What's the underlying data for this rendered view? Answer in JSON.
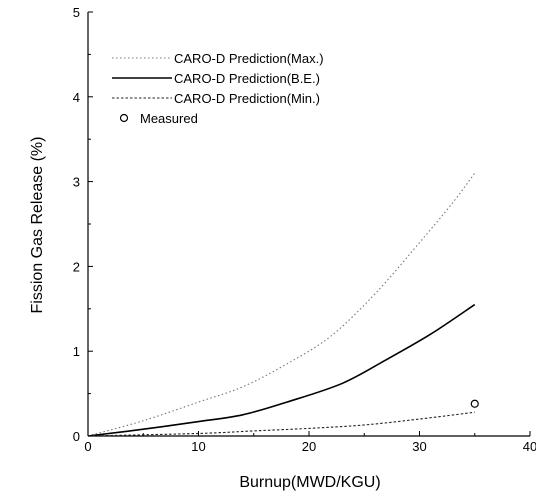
{
  "chart_data": {
    "type": "line",
    "xlabel": "Burnup(MWD/KGU)",
    "ylabel": "Fission Gas Release (%)",
    "xlim": [
      0,
      40
    ],
    "ylim": [
      0,
      5
    ],
    "xticks": [
      0,
      10,
      20,
      30,
      40
    ],
    "yticks": [
      0,
      1,
      2,
      3,
      4,
      5
    ],
    "grid": false,
    "legend_position": "top-left",
    "series": [
      {
        "name": "CARO-D Prediction(Max.)",
        "style": "dotted",
        "x": [
          0,
          5,
          10,
          14,
          18,
          22,
          26,
          30,
          33,
          35
        ],
        "y": [
          0,
          0.18,
          0.4,
          0.58,
          0.85,
          1.18,
          1.68,
          2.28,
          2.75,
          3.1
        ]
      },
      {
        "name": "CARO-D Prediction(B.E.)",
        "style": "solid",
        "x": [
          0,
          5,
          10,
          14,
          18,
          23,
          27,
          31,
          35
        ],
        "y": [
          0,
          0.08,
          0.17,
          0.25,
          0.4,
          0.62,
          0.9,
          1.2,
          1.55
        ]
      },
      {
        "name": "CARO-D Prediction(Min.)",
        "style": "dashed",
        "x": [
          0,
          10,
          15,
          20,
          25,
          30,
          35
        ],
        "y": [
          0,
          0.03,
          0.06,
          0.09,
          0.13,
          0.2,
          0.28
        ]
      },
      {
        "name": "Measured",
        "style": "marker",
        "x": [
          35
        ],
        "y": [
          0.38
        ]
      }
    ]
  }
}
